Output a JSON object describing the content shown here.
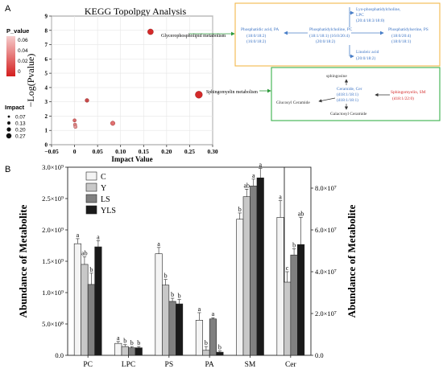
{
  "panel_a": {
    "label": "A",
    "title": "KEGG Topolpgy Analysis",
    "xlabel": "Impact Value",
    "ylabel": "−Log(Pvalue)",
    "legend_color_title": "P_value",
    "legend_size_title": "Impact",
    "pathway_glycero": "Glycerophospholipid metabolism",
    "pathway_sphingo": "Sphingomyelin metabolism",
    "glycero_box": {
      "border_color": "#f2b84b",
      "pa_name": "Phosphatidic acid, PA",
      "pa_species": "(18:0/18:2)",
      "pa_species2": "(16:0/18:2)",
      "pc_name": "Phosphatidylcholine, PC",
      "pc_species": "(18:1/18:1) (16:0/20:4)",
      "pc_species2": "(20:0/18:2)",
      "lpc_name": "Lyo-phosphatidylcholine,",
      "lpc_abbr": "LPC",
      "lpc_species": "(20:4/18:3/18:0)",
      "ps_name": "Phosphatidylserine, PS",
      "ps_species": "(18:0/20:4)",
      "ps_species2": "(18:0/18:1)",
      "linoleic_name": "Linoleic acid",
      "linoleic_species": "(20:0/18:2)"
    },
    "sphingo_box": {
      "border_color": "#3ab04a",
      "sphingosine": "sphingosine",
      "cer_name": "Ceramide, Cer",
      "cer_species": "(d18:1/18:1)",
      "cer_species2": "(d18:1/18:1)",
      "sm_name": "Sphingomyelin, SM",
      "sm_species": "(d18:1/22:0)",
      "glucosyl": "Glucosyl Ceramide",
      "galactosyl": "Galactosyl Ceramide"
    }
  },
  "panel_b": {
    "label": "B",
    "ylabel_left": "Abundance of Metabolite",
    "ylabel_right": "Abundance of Metabolite"
  },
  "chart_data": [
    {
      "type": "scatter",
      "title": "KEGG Topolpgy Analysis",
      "xlabel": "Impact Value",
      "ylabel": "−Log(Pvalue)",
      "xlim": [
        -0.05,
        0.3
      ],
      "ylim": [
        0,
        9
      ],
      "xticks": [
        "−0.05",
        "0",
        "0.05",
        "0.10",
        "0.15",
        "0.20",
        "0.25",
        "0.30"
      ],
      "yticks": [
        "0",
        "1",
        "2",
        "3",
        "4",
        "5",
        "6",
        "7",
        "8",
        "9"
      ],
      "color_scale": {
        "title": "P_value",
        "ticks": [
          "0.06",
          "0.04",
          "0.02",
          "0"
        ],
        "high_color": "#f4c6c6",
        "low_color": "#d42020"
      },
      "size_scale": {
        "title": "Impact",
        "labels": [
          "0.07",
          "0.13",
          "0.20",
          "0.27"
        ]
      },
      "points": [
        {
          "x": 0.165,
          "y": 7.9,
          "size": 0.2,
          "color": "#d42a2a"
        },
        {
          "x": 0.27,
          "y": 3.5,
          "size": 0.27,
          "color": "#d42a2a"
        },
        {
          "x": 0.027,
          "y": 3.1,
          "size": 0.1,
          "color": "#c84a4a"
        },
        {
          "x": 0.083,
          "y": 1.5,
          "size": 0.13,
          "color": "#e07070"
        },
        {
          "x": 0.0,
          "y": 1.7,
          "size": 0.07,
          "color": "#d86a6a"
        },
        {
          "x": 0.001,
          "y": 1.4,
          "size": 0.07,
          "color": "#e08a8a"
        },
        {
          "x": 0.002,
          "y": 1.25,
          "size": 0.07,
          "color": "#e49a9a"
        }
      ]
    },
    {
      "type": "bar",
      "categories": [
        "PC",
        "LPC",
        "PS",
        "PA",
        "SM",
        "Cer"
      ],
      "ylabel": "Abundance of Metabolite",
      "left_axis": {
        "ylim": [
          0,
          3000000000.0
        ],
        "tick_labels": [
          "0.0",
          "5.0×10⁸",
          "1.0×10⁹",
          "1.5×10⁹",
          "2.0×10⁹",
          "2.5×10⁹",
          "3.0×10⁹"
        ],
        "categories": [
          "PC",
          "LPC",
          "PS",
          "PA",
          "SM"
        ]
      },
      "right_axis": {
        "ylim": [
          0,
          90000000.0
        ],
        "tick_labels": [
          "0.0",
          "2.0×10⁷",
          "4.0×10⁷",
          "6.0×10⁷",
          "8.0×10⁷"
        ],
        "categories": [
          "Cer"
        ]
      },
      "legend_position": "top-left",
      "series": [
        {
          "name": "C",
          "color": "#f4f4f4",
          "values": [
            1780000000.0,
            190000000.0,
            1620000000.0,
            560000000.0,
            2170000000.0,
            66000000.0
          ],
          "errors": [
            80000000.0,
            30000000.0,
            100000000.0,
            120000000.0,
            100000000.0,
            8000000.0
          ],
          "letters": [
            "a",
            "a",
            "a",
            "a",
            "b",
            "a"
          ]
        },
        {
          "name": "Y",
          "color": "#c8c8c8",
          "values": [
            1450000000.0,
            140000000.0,
            1120000000.0,
            80000000.0,
            2530000000.0,
            35000000.0
          ],
          "errors": [
            120000000.0,
            30000000.0,
            90000000.0,
            60000000.0,
            120000000.0,
            5000000.0
          ],
          "letters": [
            "ab",
            "b",
            "b",
            "b",
            "ab",
            "c"
          ]
        },
        {
          "name": "LS",
          "color": "#808080",
          "values": [
            1130000000.0,
            120000000.0,
            860000000.0,
            580000000.0,
            2700000000.0,
            48000000.0
          ],
          "errors": [
            180000000.0,
            20000000.0,
            50000000.0,
            20000000.0,
            110000000.0,
            3000000.0
          ],
          "letters": [
            "b",
            "b",
            "b",
            "a",
            "a",
            "b"
          ]
        },
        {
          "name": "YLS",
          "color": "#1a1a1a",
          "values": [
            1730000000.0,
            120000000.0,
            820000000.0,
            50000000.0,
            2830000000.0,
            53000000.0
          ],
          "errors": [
            100000000.0,
            20000000.0,
            70000000.0,
            20000000.0,
            150000000.0,
            13000000.0
          ],
          "letters": [
            "a",
            "b",
            "b",
            "b",
            "a",
            "ab"
          ]
        }
      ]
    }
  ]
}
